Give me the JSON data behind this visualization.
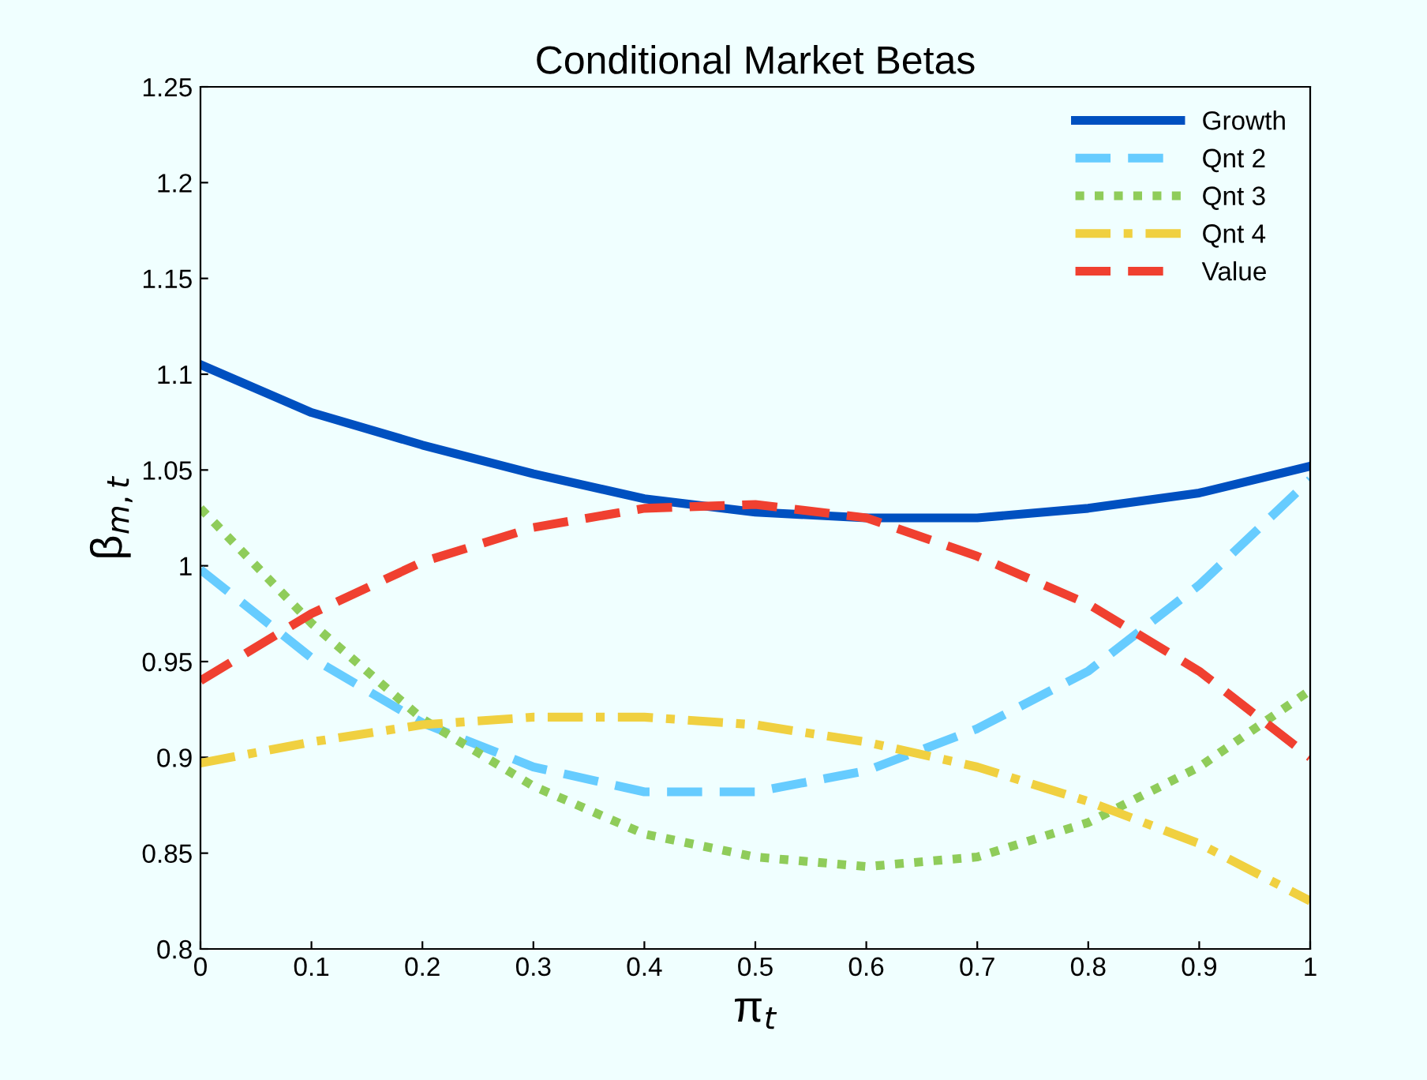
{
  "chart_data": {
    "type": "line",
    "title": "Conditional Market Betas",
    "xlabel": "π$_{t}$",
    "ylabel": "β$_{m,t}$",
    "x": [
      0,
      0.1,
      0.2,
      0.3,
      0.4,
      0.5,
      0.6,
      0.7,
      0.8,
      0.9,
      1
    ],
    "series": [
      {
        "name": "Growth",
        "color": "#0050c0",
        "line_style": "solid",
        "values": [
          1.105,
          1.08,
          1.063,
          1.048,
          1.035,
          1.028,
          1.025,
          1.025,
          1.03,
          1.038,
          1.052
        ]
      },
      {
        "name": "Qnt 2",
        "color": "#66ccff",
        "line_style": "dashed",
        "values": [
          0.998,
          0.952,
          0.918,
          0.895,
          0.882,
          0.882,
          0.893,
          0.915,
          0.945,
          0.99,
          1.045
        ]
      },
      {
        "name": "Qnt 3",
        "color": "#8fcc5a",
        "line_style": "dotted",
        "values": [
          1.03,
          0.97,
          0.92,
          0.885,
          0.86,
          0.848,
          0.843,
          0.848,
          0.866,
          0.895,
          0.935
        ]
      },
      {
        "name": "Qnt 4",
        "color": "#f0d040",
        "line_style": "dashdot",
        "values": [
          0.897,
          0.908,
          0.917,
          0.921,
          0.921,
          0.917,
          0.908,
          0.895,
          0.877,
          0.855,
          0.825
        ]
      },
      {
        "name": "Value",
        "color": "#f04030",
        "line_style": "dashed",
        "values": [
          0.94,
          0.975,
          1.002,
          1.02,
          1.03,
          1.032,
          1.025,
          1.005,
          0.98,
          0.945,
          0.9
        ]
      }
    ],
    "xlim": [
      0,
      1
    ],
    "xticks": [
      0,
      0.1,
      0.2,
      0.3,
      0.4,
      0.5,
      0.6,
      0.7,
      0.8,
      0.9,
      1
    ],
    "ylim": [
      0.8,
      1.25
    ],
    "yticks": [
      0.8,
      0.85,
      0.9,
      0.95,
      1,
      1.05,
      1.1,
      1.15,
      1.2,
      1.25
    ],
    "grid": false,
    "legend": "top right",
    "marker": "none"
  }
}
